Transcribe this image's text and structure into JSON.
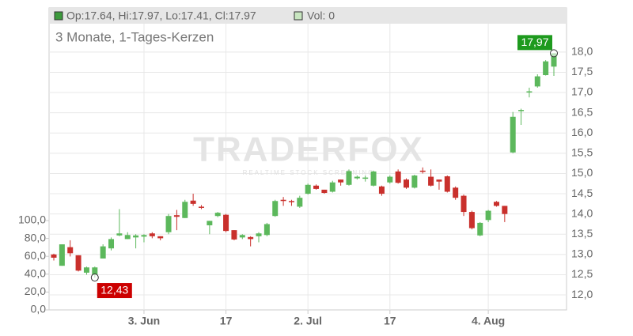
{
  "chart_data": {
    "type": "candlestick",
    "header_ohlc": "Op:17.64, Hi:17.97, Lo:17.41, Cl:17.97",
    "header_vol": "Vol: 0",
    "subtitle": "3 Monate, 1-Tages-Kerzen",
    "watermark": "TRADERFOX",
    "watermark_sub": "REALTIME STOCK SCREENING",
    "categories": [
      null,
      null,
      null,
      null,
      null,
      null,
      null,
      null,
      null,
      null,
      null,
      "3. Jun",
      null,
      null,
      null,
      null,
      null,
      null,
      null,
      null,
      null,
      "17",
      null,
      null,
      null,
      null,
      null,
      null,
      null,
      null,
      null,
      "2. Jul",
      null,
      null,
      null,
      null,
      null,
      null,
      null,
      null,
      null,
      "17",
      null,
      null,
      null,
      null,
      null,
      null,
      null,
      null,
      null,
      null,
      null,
      "4. Aug",
      null,
      null,
      null,
      null,
      null,
      null,
      null,
      null
    ],
    "open": [
      13.0,
      12.72,
      13.18,
      12.98,
      12.55,
      12.5,
      12.9,
      13.15,
      13.47,
      13.38,
      13.42,
      13.44,
      13.52,
      13.45,
      13.55,
      13.97,
      13.9,
      14.33,
      14.18,
      13.72,
      13.95,
      13.98,
      13.6,
      13.42,
      13.43,
      13.45,
      13.48,
      13.95,
      14.35,
      14.32,
      14.18,
      14.5,
      14.7,
      14.6,
      14.55,
      14.85,
      14.72,
      14.88,
      14.87,
      14.7,
      14.68,
      14.78,
      15.05,
      14.85,
      14.65,
      15.07,
      14.92,
      14.85,
      14.93,
      14.65,
      14.45,
      14.05,
      13.47,
      13.85,
      14.3,
      14.2,
      15.52,
      16.55,
      17.0,
      17.15,
      17.43,
      17.64
    ],
    "high": [
      13.02,
      13.25,
      13.35,
      12.98,
      12.7,
      12.7,
      13.25,
      13.42,
      14.12,
      13.55,
      13.5,
      13.5,
      13.55,
      13.45,
      14.0,
      14.1,
      14.35,
      14.5,
      14.22,
      13.83,
      14.05,
      14.0,
      13.6,
      13.5,
      13.45,
      13.55,
      13.78,
      14.35,
      14.42,
      14.35,
      14.45,
      14.75,
      14.73,
      14.6,
      14.82,
      14.85,
      15.1,
      14.95,
      14.95,
      15.07,
      14.7,
      14.95,
      15.1,
      14.88,
      14.97,
      15.15,
      15.1,
      14.85,
      14.95,
      14.68,
      14.48,
      14.08,
      13.8,
      14.1,
      14.32,
      14.2,
      16.52,
      16.6,
      17.12,
      17.45,
      17.8,
      17.97
    ],
    "low": [
      12.85,
      12.72,
      12.95,
      12.58,
      12.5,
      12.43,
      12.9,
      13.1,
      13.45,
      13.38,
      13.15,
      13.3,
      13.4,
      13.35,
      13.5,
      13.6,
      13.9,
      14.2,
      14.12,
      13.5,
      13.92,
      13.55,
      13.35,
      13.38,
      13.2,
      13.3,
      13.45,
      13.93,
      14.2,
      14.2,
      14.15,
      14.48,
      14.6,
      14.5,
      14.53,
      14.7,
      14.7,
      14.85,
      14.8,
      14.68,
      14.45,
      14.75,
      14.75,
      14.62,
      14.63,
      15.0,
      14.68,
      14.6,
      14.53,
      14.35,
      13.95,
      13.62,
      13.45,
      13.8,
      14.18,
      13.8,
      15.5,
      16.2,
      16.88,
      17.12,
      17.42,
      17.41
    ],
    "close": [
      12.92,
      13.25,
      13.03,
      12.6,
      12.68,
      12.68,
      13.2,
      13.38,
      13.52,
      13.48,
      13.47,
      13.48,
      13.45,
      13.4,
      13.95,
      13.93,
      14.3,
      14.25,
      14.16,
      13.83,
      14.03,
      13.58,
      13.37,
      13.48,
      13.38,
      13.52,
      13.75,
      14.32,
      14.32,
      14.3,
      14.4,
      14.72,
      14.62,
      14.52,
      14.78,
      14.78,
      15.06,
      14.92,
      14.9,
      15.05,
      14.5,
      14.92,
      14.77,
      14.65,
      14.95,
      15.05,
      14.7,
      14.8,
      14.55,
      14.4,
      14.05,
      13.65,
      13.78,
      14.08,
      14.2,
      14.0,
      16.4,
      16.57,
      17.03,
      17.4,
      17.77,
      17.97
    ],
    "up_color": "#5cb85c",
    "down_color": "#c9302c",
    "vol_color": "#c8e6c0",
    "ylim": [
      11.63,
      18.7
    ],
    "yticks": [
      {
        "value": 12,
        "label": "12,0"
      },
      {
        "value": 12.5,
        "label": "12,5"
      },
      {
        "value": 13,
        "label": "13,0"
      },
      {
        "value": 13.5,
        "label": "13,5"
      },
      {
        "value": 14,
        "label": "14,0"
      },
      {
        "value": 14.5,
        "label": "14,5"
      },
      {
        "value": 15,
        "label": "15,0"
      },
      {
        "value": 15.5,
        "label": "15,5"
      },
      {
        "value": 16,
        "label": "16,0"
      },
      {
        "value": 16.5,
        "label": "16,5"
      },
      {
        "value": 17,
        "label": "17,0"
      },
      {
        "value": 17.5,
        "label": "17,5"
      },
      {
        "value": 18,
        "label": "18,0"
      }
    ],
    "y2lim": [
      0,
      100
    ],
    "y2ticks": [
      {
        "value": 0,
        "label": "0,0"
      },
      {
        "value": 20,
        "label": "20,0"
      },
      {
        "value": 40,
        "label": "40,0"
      },
      {
        "value": 60,
        "label": "60,0"
      },
      {
        "value": 80,
        "label": "80,0"
      },
      {
        "value": 100,
        "label": "100,0"
      }
    ],
    "annotations": [
      {
        "label": "17,97",
        "value": 17.97,
        "color": "#1e9a1e",
        "field": "high"
      },
      {
        "label": "12,43",
        "value": 12.43,
        "color": "#cc0000",
        "field": "low"
      }
    ],
    "grid": true
  }
}
